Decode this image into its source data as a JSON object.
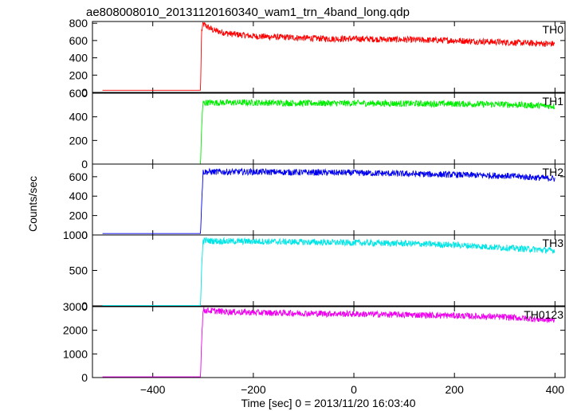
{
  "title": "ae808008010_20131120160340_wam1_trn_4band_long.qdp",
  "chart_data": {
    "type": "line",
    "title": "ae808008010_20131120160340_wam1_trn_4band_long.qdp",
    "xlabel": "Time [sec] 0 = 2013/11/20 16:03:40",
    "ylabel": "Counts/sec",
    "xlim": [
      -520,
      420
    ],
    "x_ticks": [
      -400,
      -200,
      0,
      200,
      400
    ],
    "x_tick_labels": [
      "−400",
      "−200",
      "0",
      "200",
      "400"
    ],
    "grid": false,
    "panels": [
      {
        "name": "TH0",
        "color": "#ff0000",
        "ylim": [
          0,
          820
        ],
        "y_ticks": [
          0,
          200,
          400,
          600,
          800
        ],
        "x": [
          -500,
          -305,
          -303,
          -300,
          -280,
          -250,
          -200,
          -150,
          -100,
          -50,
          0,
          50,
          100,
          150,
          200,
          250,
          300,
          350,
          400
        ],
        "y": [
          25,
          25,
          700,
          790,
          720,
          680,
          650,
          640,
          630,
          620,
          620,
          615,
          610,
          605,
          600,
          590,
          580,
          570,
          560
        ]
      },
      {
        "name": "TH1",
        "color": "#00ee00",
        "ylim": [
          0,
          600
        ],
        "y_ticks": [
          0,
          200,
          400,
          600
        ],
        "x": [
          -500,
          -305,
          -303,
          -300,
          -250,
          -200,
          -100,
          0,
          100,
          200,
          300,
          400
        ],
        "y": [
          0,
          0,
          300,
          520,
          520,
          520,
          515,
          515,
          512,
          510,
          505,
          490
        ]
      },
      {
        "name": "TH2",
        "color": "#0000ee",
        "ylim": [
          0,
          730
        ],
        "y_ticks": [
          0,
          200,
          400,
          600
        ],
        "x": [
          -500,
          -305,
          -303,
          -300,
          -250,
          -200,
          -100,
          0,
          100,
          200,
          300,
          400
        ],
        "y": [
          15,
          15,
          300,
          650,
          650,
          650,
          645,
          640,
          630,
          620,
          610,
          580
        ]
      },
      {
        "name": "TH3",
        "color": "#00e5e5",
        "ylim": [
          0,
          1000
        ],
        "y_ticks": [
          0,
          500,
          1000
        ],
        "x": [
          -500,
          -305,
          -303,
          -300,
          -250,
          -200,
          -100,
          0,
          100,
          200,
          300,
          400
        ],
        "y": [
          5,
          5,
          500,
          920,
          910,
          910,
          900,
          890,
          880,
          860,
          820,
          780
        ]
      },
      {
        "name": "TH0123",
        "color": "#ee00ee",
        "ylim": [
          0,
          3000
        ],
        "y_ticks": [
          0,
          1000,
          2000,
          3000
        ],
        "x": [
          -500,
          -305,
          -303,
          -300,
          -250,
          -200,
          -100,
          0,
          100,
          200,
          300,
          400
        ],
        "y": [
          30,
          30,
          1500,
          2850,
          2780,
          2750,
          2720,
          2690,
          2660,
          2620,
          2560,
          2420
        ]
      }
    ]
  }
}
